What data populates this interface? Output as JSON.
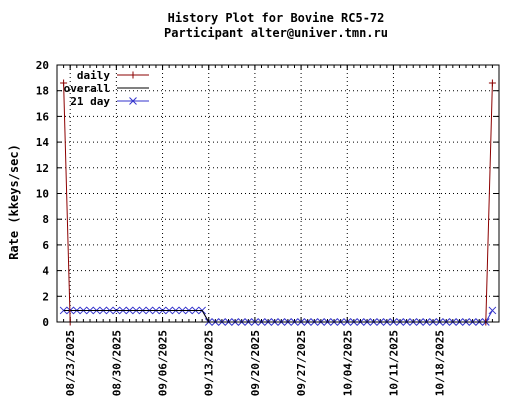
{
  "chart_data": {
    "type": "line",
    "title_line1": "History Plot for Bovine RC5-72",
    "title_line2": "Participant alter@univer.tmn.ru",
    "xlabel": "",
    "ylabel": "Rate (kkeys/sec)",
    "ylim": [
      0,
      20
    ],
    "yticks": [
      0,
      2,
      4,
      6,
      8,
      10,
      12,
      14,
      16,
      18,
      20
    ],
    "x_range": [
      "2025-08-21",
      "2025-10-27"
    ],
    "x_tick_dates": [
      "2025-08-23",
      "2025-08-30",
      "2025-09-06",
      "2025-09-13",
      "2025-09-20",
      "2025-09-27",
      "2025-10-04",
      "2025-10-11",
      "2025-10-18"
    ],
    "x_tick_labels": [
      "08/23/2025",
      "08/30/2025",
      "09/06/2025",
      "09/13/2025",
      "09/20/2025",
      "09/27/2025",
      "10/04/2025",
      "10/11/2025",
      "10/18/2025"
    ],
    "grid": true,
    "legend_position": "top-left",
    "series": [
      {
        "name": "daily",
        "color": "#8b0000",
        "marker": "plus",
        "points": [
          [
            "2025-08-22",
            18.6
          ],
          [
            "2025-08-23",
            0
          ],
          [
            "2025-10-25",
            0
          ],
          [
            "2025-10-26",
            18.6
          ]
        ]
      },
      {
        "name": "overall",
        "color": "#000000",
        "marker": "none",
        "points": [
          [
            "2025-08-22",
            0.9
          ],
          [
            "2025-09-12",
            0.9
          ],
          [
            "2025-09-13",
            0
          ],
          [
            "2025-10-26",
            0
          ]
        ]
      },
      {
        "name": "21 day",
        "color": "#3333cc",
        "marker": "x",
        "points": [
          [
            "2025-08-22",
            0.9
          ],
          [
            "2025-08-23",
            0.9
          ],
          [
            "2025-08-24",
            0.9
          ],
          [
            "2025-08-25",
            0.9
          ],
          [
            "2025-08-26",
            0.9
          ],
          [
            "2025-08-27",
            0.9
          ],
          [
            "2025-08-28",
            0.9
          ],
          [
            "2025-08-29",
            0.9
          ],
          [
            "2025-08-30",
            0.9
          ],
          [
            "2025-08-31",
            0.9
          ],
          [
            "2025-09-01",
            0.9
          ],
          [
            "2025-09-02",
            0.9
          ],
          [
            "2025-09-03",
            0.9
          ],
          [
            "2025-09-04",
            0.9
          ],
          [
            "2025-09-05",
            0.9
          ],
          [
            "2025-09-06",
            0.9
          ],
          [
            "2025-09-07",
            0.9
          ],
          [
            "2025-09-08",
            0.9
          ],
          [
            "2025-09-09",
            0.9
          ],
          [
            "2025-09-10",
            0.9
          ],
          [
            "2025-09-11",
            0.9
          ],
          [
            "2025-09-12",
            0.9
          ],
          [
            "2025-09-13",
            0
          ],
          [
            "2025-09-14",
            0
          ],
          [
            "2025-09-15",
            0
          ],
          [
            "2025-09-16",
            0
          ],
          [
            "2025-09-17",
            0
          ],
          [
            "2025-09-18",
            0
          ],
          [
            "2025-09-19",
            0
          ],
          [
            "2025-09-20",
            0
          ],
          [
            "2025-09-21",
            0
          ],
          [
            "2025-09-22",
            0
          ],
          [
            "2025-09-23",
            0
          ],
          [
            "2025-09-24",
            0
          ],
          [
            "2025-09-25",
            0
          ],
          [
            "2025-09-26",
            0
          ],
          [
            "2025-09-27",
            0
          ],
          [
            "2025-09-28",
            0
          ],
          [
            "2025-09-29",
            0
          ],
          [
            "2025-09-30",
            0
          ],
          [
            "2025-10-01",
            0
          ],
          [
            "2025-10-02",
            0
          ],
          [
            "2025-10-03",
            0
          ],
          [
            "2025-10-04",
            0
          ],
          [
            "2025-10-05",
            0
          ],
          [
            "2025-10-06",
            0
          ],
          [
            "2025-10-07",
            0
          ],
          [
            "2025-10-08",
            0
          ],
          [
            "2025-10-09",
            0
          ],
          [
            "2025-10-10",
            0
          ],
          [
            "2025-10-11",
            0
          ],
          [
            "2025-10-12",
            0
          ],
          [
            "2025-10-13",
            0
          ],
          [
            "2025-10-14",
            0
          ],
          [
            "2025-10-15",
            0
          ],
          [
            "2025-10-16",
            0
          ],
          [
            "2025-10-17",
            0
          ],
          [
            "2025-10-18",
            0
          ],
          [
            "2025-10-19",
            0
          ],
          [
            "2025-10-20",
            0
          ],
          [
            "2025-10-21",
            0
          ],
          [
            "2025-10-22",
            0
          ],
          [
            "2025-10-23",
            0
          ],
          [
            "2025-10-24",
            0
          ],
          [
            "2025-10-25",
            0
          ],
          [
            "2025-10-26",
            0.9
          ]
        ]
      }
    ]
  }
}
